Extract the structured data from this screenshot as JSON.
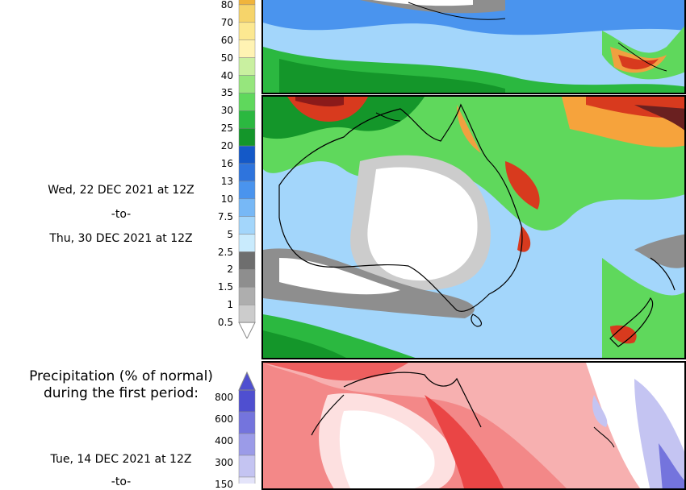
{
  "colorbar_precip": {
    "labels": [
      "80",
      "70",
      "60",
      "50",
      "40",
      "35",
      "30",
      "25",
      "20",
      "16",
      "13",
      "10",
      "7.5",
      "5",
      "2.5",
      "2",
      "1.5",
      "1",
      "0.5"
    ],
    "colors": [
      "#f0b43c",
      "#f6d46a",
      "#fce891",
      "#fff3b3",
      "#c9f0a0",
      "#96e67d",
      "#5fd85c",
      "#2bb840",
      "#14962a",
      "#1459c8",
      "#2e74dd",
      "#4a94ee",
      "#77b8f6",
      "#a3d6fb",
      "#c9ebfd",
      "#6e6e6e",
      "#8e8e8e",
      "#aeaeae",
      "#cccccc"
    ]
  },
  "panel2_period": {
    "line1": "Wed, 22 DEC 2021 at 12Z",
    "line2": "-to-",
    "line3": "Thu, 30 DEC 2021 at 12Z"
  },
  "section_pct": {
    "title_line1": "Precipitation (% of normal)",
    "title_line2": "during the first period:"
  },
  "colorbar_pct": {
    "labels": [
      "800",
      "600",
      "400",
      "300",
      "150"
    ],
    "colors": [
      "#4f4fd0",
      "#7474dd",
      "#9b9be8",
      "#c4c4f2",
      "#e4e4fa"
    ]
  },
  "panel3_period": {
    "line1": "Tue, 14 DEC 2021 at 12Z",
    "line2": "-to-"
  }
}
